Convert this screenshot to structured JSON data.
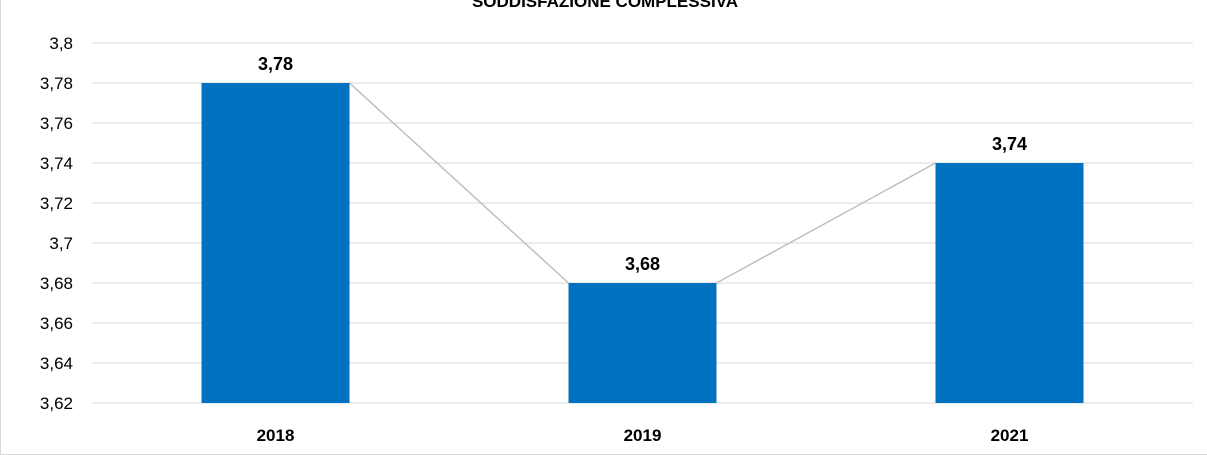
{
  "chart_data": {
    "type": "bar",
    "title": "SODDISFAZIONE COMPLESSIVA",
    "categories": [
      "2018",
      "2019",
      "2021"
    ],
    "series": [
      {
        "values": [
          3.78,
          3.68,
          3.74
        ],
        "data_labels": [
          "3,78",
          "3,68",
          "3,74"
        ]
      }
    ],
    "connector_line": true,
    "ylim": [
      3.62,
      3.8
    ],
    "yticks": [
      3.62,
      3.64,
      3.66,
      3.68,
      3.7,
      3.72,
      3.74,
      3.76,
      3.78,
      3.8
    ],
    "ytick_labels": [
      "3,62",
      "3,64",
      "3,66",
      "3,68",
      "3,7",
      "3,72",
      "3,74",
      "3,76",
      "3,78",
      "3,8"
    ],
    "grid": true,
    "legend": "none",
    "colors": {
      "bar": "#0070c0",
      "connector": "#bfbfbf",
      "grid": "#d9d9d9"
    }
  }
}
